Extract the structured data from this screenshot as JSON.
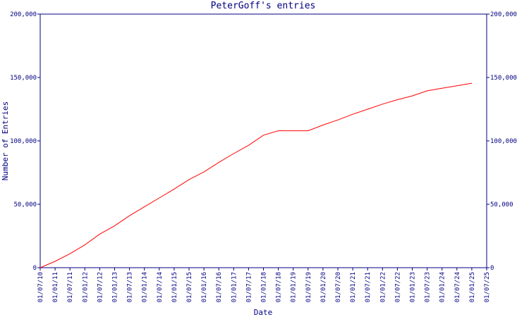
{
  "chart_data": {
    "type": "line",
    "title": "PeterGoff's entries",
    "x_label": "Date",
    "y_label": "Number of Entries",
    "categories": [
      "01/07/10",
      "01/01/11",
      "01/07/11",
      "01/01/12",
      "01/07/12",
      "01/01/13",
      "01/07/13",
      "01/01/14",
      "01/07/14",
      "01/01/15",
      "01/07/15",
      "01/01/16",
      "01/07/16",
      "01/01/17",
      "01/07/17",
      "01/01/18",
      "01/07/18",
      "01/01/19",
      "01/07/19",
      "01/01/20",
      "01/07/20",
      "01/01/21",
      "01/07/21",
      "01/01/22",
      "01/07/22",
      "01/01/23",
      "01/07/23",
      "01/01/24",
      "01/07/24",
      "01/01/25",
      "01/07/25"
    ],
    "series": [
      {
        "name": "Entries",
        "color": "#ff0000",
        "values": [
          0,
          5000,
          11000,
          18000,
          26500,
          33000,
          41000,
          48000,
          55000,
          62000,
          69500,
          75500,
          83000,
          90000,
          96500,
          104500,
          108000,
          108000,
          108000,
          112500,
          116500,
          121000,
          125000,
          129000,
          132500,
          135500,
          139500,
          141500,
          143500,
          145500,
          null
        ]
      }
    ],
    "ylim": [
      0,
      200000
    ],
    "yticks": [
      0,
      {
        "value": 50000,
        "label": "50,000"
      },
      {
        "value": 100000,
        "label": "100,000"
      },
      {
        "value": 150000,
        "label": "150,000"
      },
      {
        "value": 200000,
        "label": "200,000"
      }
    ],
    "axis_color": "#000080",
    "right_axis": true
  }
}
